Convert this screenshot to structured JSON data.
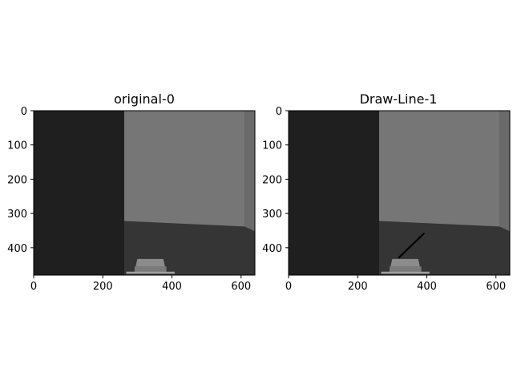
{
  "chart_data": [
    {
      "type": "image",
      "title": "original-0",
      "image_size": [
        640,
        480
      ],
      "xlim": [
        0,
        640
      ],
      "ylim": [
        480,
        0
      ],
      "xticks": [
        0,
        200,
        400,
        600
      ],
      "yticks": [
        0,
        100,
        200,
        300,
        400
      ],
      "scene": {
        "left_wall_color": "#1f1f1f",
        "back_wall_color": "#767676",
        "right_wall_color": "#6a6a6a",
        "floor_color": "#353535",
        "object_color": "#8c8c8c"
      }
    },
    {
      "type": "image",
      "title": "Draw-Line-1",
      "image_size": [
        640,
        480
      ],
      "xlim": [
        0,
        640
      ],
      "ylim": [
        480,
        0
      ],
      "xticks": [
        0,
        200,
        400,
        600
      ],
      "yticks": [
        0,
        100,
        200,
        300,
        400
      ],
      "scene": {
        "left_wall_color": "#1f1f1f",
        "back_wall_color": "#767676",
        "right_wall_color": "#6a6a6a",
        "floor_color": "#353535",
        "object_color": "#8c8c8c"
      },
      "drawn_line": {
        "x1": 318,
        "y1": 430,
        "x2": 393,
        "y2": 357,
        "color": "#000000"
      }
    }
  ]
}
